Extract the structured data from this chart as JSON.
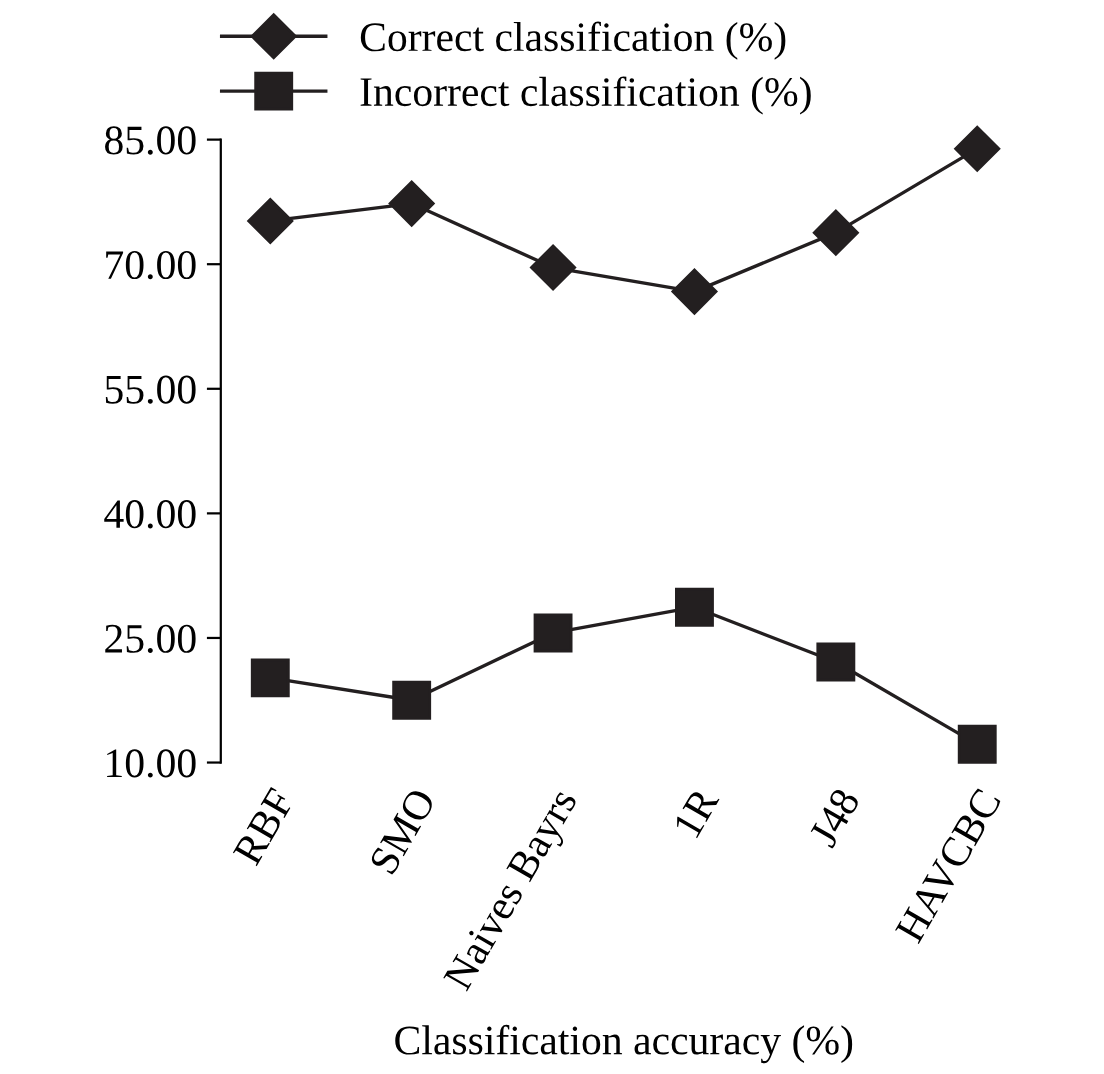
{
  "chart_data": {
    "type": "line",
    "xlabel": "Classification accuracy (%)",
    "categories": [
      "RBF",
      "SMO",
      "Naives Bayrs",
      "1R",
      "J48",
      "HAVCBC"
    ],
    "series": [
      {
        "name": "Correct classification (%)",
        "color": "#231f20",
        "marker": "diamond",
        "values": [
          75.2,
          77.3,
          69.6,
          66.7,
          73.8,
          83.9
        ]
      },
      {
        "name": "Incorrect classification (%)",
        "color": "#231f20",
        "marker": "square",
        "values": [
          20.2,
          17.5,
          25.6,
          28.7,
          22.1,
          12.2
        ]
      }
    ],
    "ylim": [
      10,
      85
    ],
    "yticks": [
      {
        "value": 10,
        "label": "10.00"
      },
      {
        "value": 25,
        "label": "25.00"
      },
      {
        "value": 40,
        "label": "40.00"
      },
      {
        "value": 55,
        "label": "55.00"
      },
      {
        "value": 70,
        "label": "70.00"
      },
      {
        "value": 85,
        "label": "85.00"
      }
    ],
    "grid": false,
    "legend": "top left",
    "line_style": "solid"
  }
}
